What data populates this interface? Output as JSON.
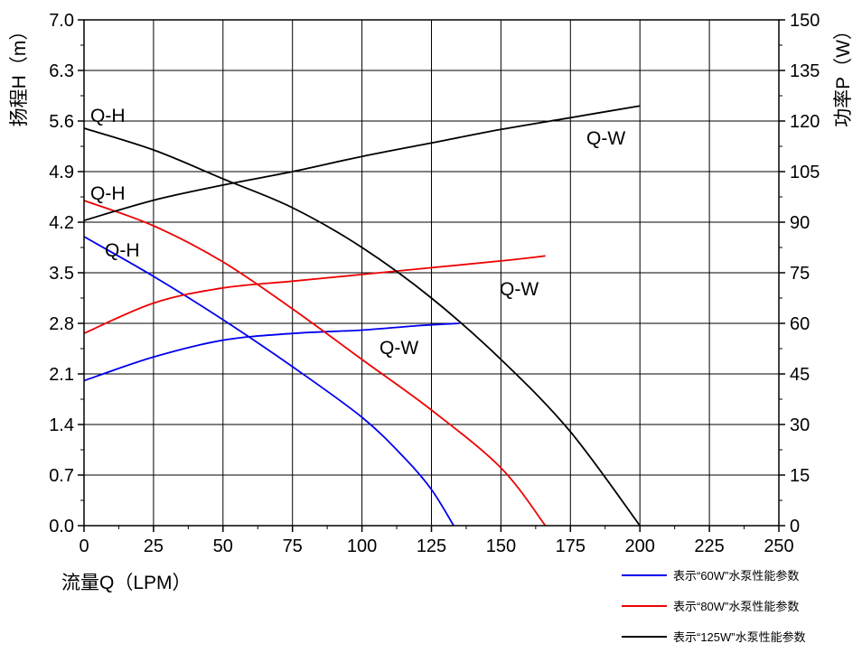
{
  "chart_data": {
    "type": "line",
    "xlabel": "流量Q（LPM）",
    "ylabel_left": "扬程H（m）",
    "ylabel_right": "功率P（W）",
    "xlim": [
      0,
      250
    ],
    "ylim_left": [
      0,
      7.0
    ],
    "ylim_right": [
      0,
      150
    ],
    "grid": true,
    "x_ticks": [
      "0",
      "25",
      "50",
      "75",
      "100",
      "125",
      "150",
      "175",
      "200",
      "225",
      "250"
    ],
    "y_left_ticks": [
      "0.0",
      "0.7",
      "1.4",
      "2.1",
      "2.8",
      "3.5",
      "4.2",
      "4.9",
      "5.6",
      "6.3",
      "7.0"
    ],
    "y_right_ticks": [
      "0",
      "15",
      "30",
      "45",
      "60",
      "75",
      "90",
      "105",
      "120",
      "135",
      "150"
    ],
    "legend_position": "bottom-right",
    "series": [
      {
        "name": "表示“60W”水泵性能参数",
        "color": "#0000ee",
        "qh": {
          "label": "Q-H",
          "x": [
            0,
            25,
            50,
            75,
            100,
            115,
            125,
            133
          ],
          "y": [
            4.0,
            3.45,
            2.85,
            2.2,
            1.5,
            0.95,
            0.5,
            0.0
          ]
        },
        "qw": {
          "label": "Q-W",
          "x": [
            0,
            25,
            50,
            75,
            100,
            120,
            135
          ],
          "y": [
            43,
            50,
            55,
            57,
            58,
            59.3,
            60
          ]
        }
      },
      {
        "name": "表示“80W”水泵性能参数",
        "color": "#ee0000",
        "qh": {
          "label": "Q-H",
          "x": [
            0,
            25,
            50,
            75,
            100,
            125,
            150,
            166
          ],
          "y": [
            4.5,
            4.15,
            3.65,
            3.0,
            2.3,
            1.6,
            0.8,
            0.0
          ]
        },
        "qw": {
          "label": "Q-W",
          "x": [
            0,
            25,
            50,
            75,
            100,
            125,
            150,
            166
          ],
          "y": [
            57,
            66,
            70.5,
            72.5,
            74.5,
            76.5,
            78.5,
            80
          ]
        }
      },
      {
        "name": "表示“125W”水泵性能参数",
        "color": "#000000",
        "qh": {
          "label": "Q-H",
          "x": [
            0,
            25,
            50,
            75,
            100,
            125,
            150,
            175,
            200
          ],
          "y": [
            5.5,
            5.2,
            4.8,
            4.4,
            3.85,
            3.15,
            2.3,
            1.3,
            0.0
          ]
        },
        "qw": {
          "label": "Q-W",
          "x": [
            0,
            25,
            50,
            75,
            100,
            125,
            150,
            175,
            200
          ],
          "y": [
            90.5,
            96.5,
            101,
            105,
            109.5,
            113.5,
            117.5,
            121,
            124.5
          ]
        }
      }
    ]
  }
}
